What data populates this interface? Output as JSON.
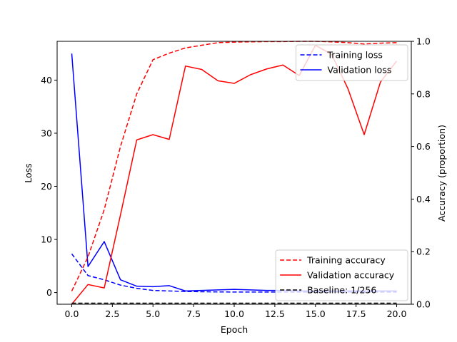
{
  "chart_data": {
    "type": "line",
    "title": "",
    "xlabel": "Epoch",
    "ylabel_left": "Loss",
    "ylabel_right": "Accuracy (proportion)",
    "xlim": [
      -0.9,
      20.9
    ],
    "ylim_left": [
      -2.2,
      47.3
    ],
    "ylim_right": [
      0.0,
      1.0
    ],
    "x_ticks": [
      0.0,
      2.5,
      5.0,
      7.5,
      10.0,
      12.5,
      15.0,
      17.5,
      20.0
    ],
    "x_tick_labels": [
      "0.0",
      "2.5",
      "5.0",
      "7.5",
      "10.0",
      "12.5",
      "15.0",
      "17.5",
      "20.0"
    ],
    "y_left_ticks": [
      0,
      10,
      20,
      30,
      40
    ],
    "y_left_tick_labels": [
      "0",
      "10",
      "20",
      "30",
      "40"
    ],
    "y_right_ticks": [
      0.0,
      0.2,
      0.4,
      0.6,
      0.8,
      1.0
    ],
    "y_right_tick_labels": [
      "0.0",
      "0.2",
      "0.4",
      "0.6",
      "0.8",
      "1.0"
    ],
    "grid": false,
    "x": [
      0,
      1,
      2,
      3,
      4,
      5,
      6,
      7,
      8,
      9,
      10,
      11,
      12,
      13,
      14,
      15,
      16,
      17,
      18,
      19,
      20
    ],
    "series": [
      {
        "name": "Training loss",
        "axis": "left",
        "color": "#0000ff",
        "dash": "dashed",
        "values": [
          7.3,
          3.2,
          2.4,
          1.4,
          0.8,
          0.4,
          0.3,
          0.2,
          0.15,
          0.12,
          0.1,
          0.1,
          0.1,
          0.1,
          0.1,
          0.1,
          0.1,
          0.1,
          0.1,
          0.1,
          0.1
        ]
      },
      {
        "name": "Validation loss",
        "axis": "left",
        "color": "#0000ff",
        "dash": "solid",
        "values": [
          45.0,
          4.9,
          9.6,
          2.4,
          1.2,
          1.1,
          1.3,
          0.3,
          0.4,
          0.5,
          0.6,
          0.5,
          0.4,
          0.4,
          0.3,
          0.3,
          0.3,
          0.3,
          0.3,
          0.3,
          0.3
        ]
      },
      {
        "name": "Training accuracy",
        "axis": "right",
        "color": "#ff0000",
        "dash": "dashed",
        "values": [
          0.05,
          0.18,
          0.36,
          0.6,
          0.8,
          0.93,
          0.955,
          0.975,
          0.985,
          0.995,
          0.997,
          0.998,
          0.999,
          0.999,
          1.0,
          1.0,
          0.998,
          0.995,
          0.99,
          0.993,
          0.995
        ]
      },
      {
        "name": "Validation accuracy",
        "axis": "right",
        "color": "#ff0000",
        "dash": "solid",
        "values": [
          0.0,
          0.075,
          0.062,
          0.34,
          0.625,
          0.645,
          0.627,
          0.906,
          0.893,
          0.85,
          0.84,
          0.873,
          0.895,
          0.91,
          0.87,
          0.985,
          0.95,
          0.82,
          0.645,
          0.845,
          0.925
        ]
      },
      {
        "name": "Baseline: 1/256",
        "axis": "right",
        "color": "#000000",
        "dash": "dashed",
        "values": [
          0.0039,
          0.0039,
          0.0039,
          0.0039,
          0.0039,
          0.0039,
          0.0039,
          0.0039,
          0.0039,
          0.0039,
          0.0039,
          0.0039,
          0.0039,
          0.0039,
          0.0039,
          0.0039,
          0.0039,
          0.0039,
          0.0039,
          0.0039,
          0.0039
        ]
      }
    ],
    "legends": [
      {
        "placement": "upper-right",
        "entries": [
          "Training loss",
          "Validation loss"
        ]
      },
      {
        "placement": "lower-right",
        "entries": [
          "Training accuracy",
          "Validation accuracy",
          "Baseline: 1/256"
        ]
      }
    ]
  }
}
